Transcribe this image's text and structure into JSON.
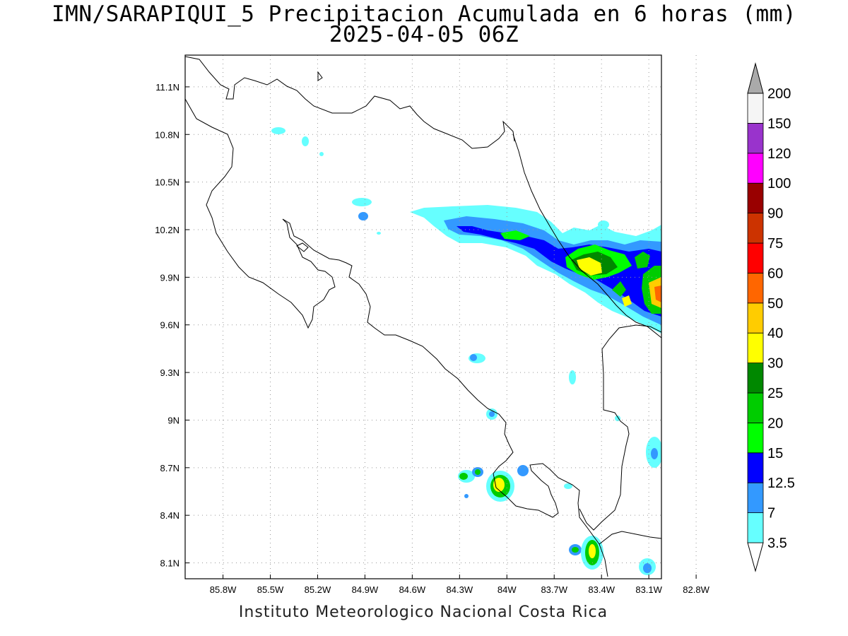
{
  "title_line1": "IMN/SARAPIQUI_5 Precipitacion Acumulada en 6 horas (mm)",
  "title_line2": "2025-04-05 06Z",
  "footer": "Instituto Meteorologico Nacional Costa Rica",
  "map": {
    "lon_range": [
      -86.04,
      -83.02
    ],
    "lat_range": [
      8.0,
      11.3
    ],
    "lon_ticks": [
      {
        "value": -85.8,
        "label": "85.8W"
      },
      {
        "value": -85.5,
        "label": "85.5W"
      },
      {
        "value": -85.2,
        "label": "85.2W"
      },
      {
        "value": -84.9,
        "label": "84.9W"
      },
      {
        "value": -84.6,
        "label": "84.6W"
      },
      {
        "value": -84.3,
        "label": "84.3W"
      },
      {
        "value": -84.0,
        "label": "84W"
      },
      {
        "value": -83.7,
        "label": "83.7W"
      },
      {
        "value": -83.4,
        "label": "83.4W"
      },
      {
        "value": -83.1,
        "label": "83.1W"
      },
      {
        "value": -82.8,
        "label": "82.8W"
      }
    ],
    "lat_ticks": [
      {
        "value": 8.1,
        "label": "8.1N"
      },
      {
        "value": 8.4,
        "label": "8.4N"
      },
      {
        "value": 8.7,
        "label": "8.7N"
      },
      {
        "value": 9.0,
        "label": "9N"
      },
      {
        "value": 9.3,
        "label": "9.3N"
      },
      {
        "value": 9.6,
        "label": "9.6N"
      },
      {
        "value": 9.9,
        "label": "9.9N"
      },
      {
        "value": 10.2,
        "label": "10.2N"
      },
      {
        "value": 10.5,
        "label": "10.5N"
      },
      {
        "value": 10.8,
        "label": "10.8N"
      },
      {
        "value": 11.1,
        "label": "11.1N"
      }
    ],
    "grid": "dotted"
  },
  "colorbar": {
    "labels": [
      "3.5",
      "7",
      "12.5",
      "15",
      "20",
      "25",
      "30",
      "40",
      "50",
      "60",
      "75",
      "90",
      "100",
      "120",
      "150",
      "200"
    ],
    "colors": [
      "#66ffff",
      "#3399ff",
      "#0000ff",
      "#00ff00",
      "#00cc00",
      "#008800",
      "#ffff00",
      "#ffcc00",
      "#ff6600",
      "#ff0000",
      "#cc3300",
      "#990000",
      "#ff00ff",
      "#9933cc",
      "#f5f5f5",
      "#aaaaaa"
    ]
  }
}
